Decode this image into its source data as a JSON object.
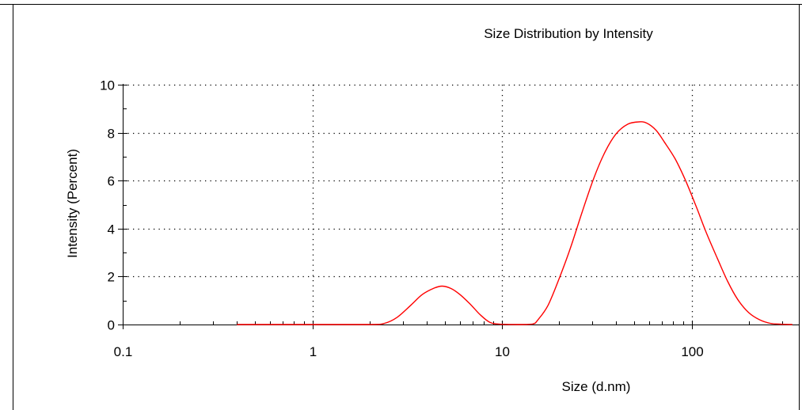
{
  "chart_data": {
    "type": "line",
    "title": "Size Distribution by Intensity",
    "xlabel": "Size (d.nm)",
    "ylabel": "Intensity (Percent)",
    "x_scale": "log",
    "xlim": [
      0.1,
      580
    ],
    "ylim": [
      0,
      10
    ],
    "x_ticks": [
      0.1,
      1,
      10,
      100
    ],
    "x_tick_labels": [
      "0.1",
      "1",
      "10",
      "100"
    ],
    "y_ticks": [
      0,
      2,
      4,
      6,
      8,
      10
    ],
    "y_tick_labels": [
      "0",
      "2",
      "4",
      "6",
      "8",
      "10"
    ],
    "grid": "dotted",
    "series": [
      {
        "color": "#ff0000",
        "x": [
          0.4,
          1.0,
          2.0,
          2.4,
          2.8,
          3.3,
          3.8,
          4.4,
          4.85,
          5.4,
          6.0,
          6.8,
          7.7,
          8.6,
          9.6,
          12.0,
          14.5,
          15.5,
          17.5,
          20.0,
          23.0,
          26.5,
          30.5,
          35.0,
          40.0,
          46.0,
          52.5,
          58.0,
          65.0,
          72.0,
          82.0,
          93.0,
          106.0,
          120.0,
          137.0,
          155.0,
          175.0,
          200.0,
          228.0,
          260.0,
          300.0,
          340.0
        ],
        "y": [
          0,
          0,
          0,
          0.05,
          0.3,
          0.8,
          1.25,
          1.52,
          1.6,
          1.5,
          1.25,
          0.85,
          0.4,
          0.1,
          0.02,
          0,
          0.02,
          0.2,
          0.8,
          1.9,
          3.2,
          4.7,
          6.1,
          7.2,
          7.95,
          8.35,
          8.45,
          8.4,
          8.1,
          7.6,
          6.9,
          6.0,
          4.9,
          3.8,
          2.75,
          1.8,
          1.05,
          0.5,
          0.2,
          0.05,
          0.01,
          0
        ]
      }
    ]
  }
}
